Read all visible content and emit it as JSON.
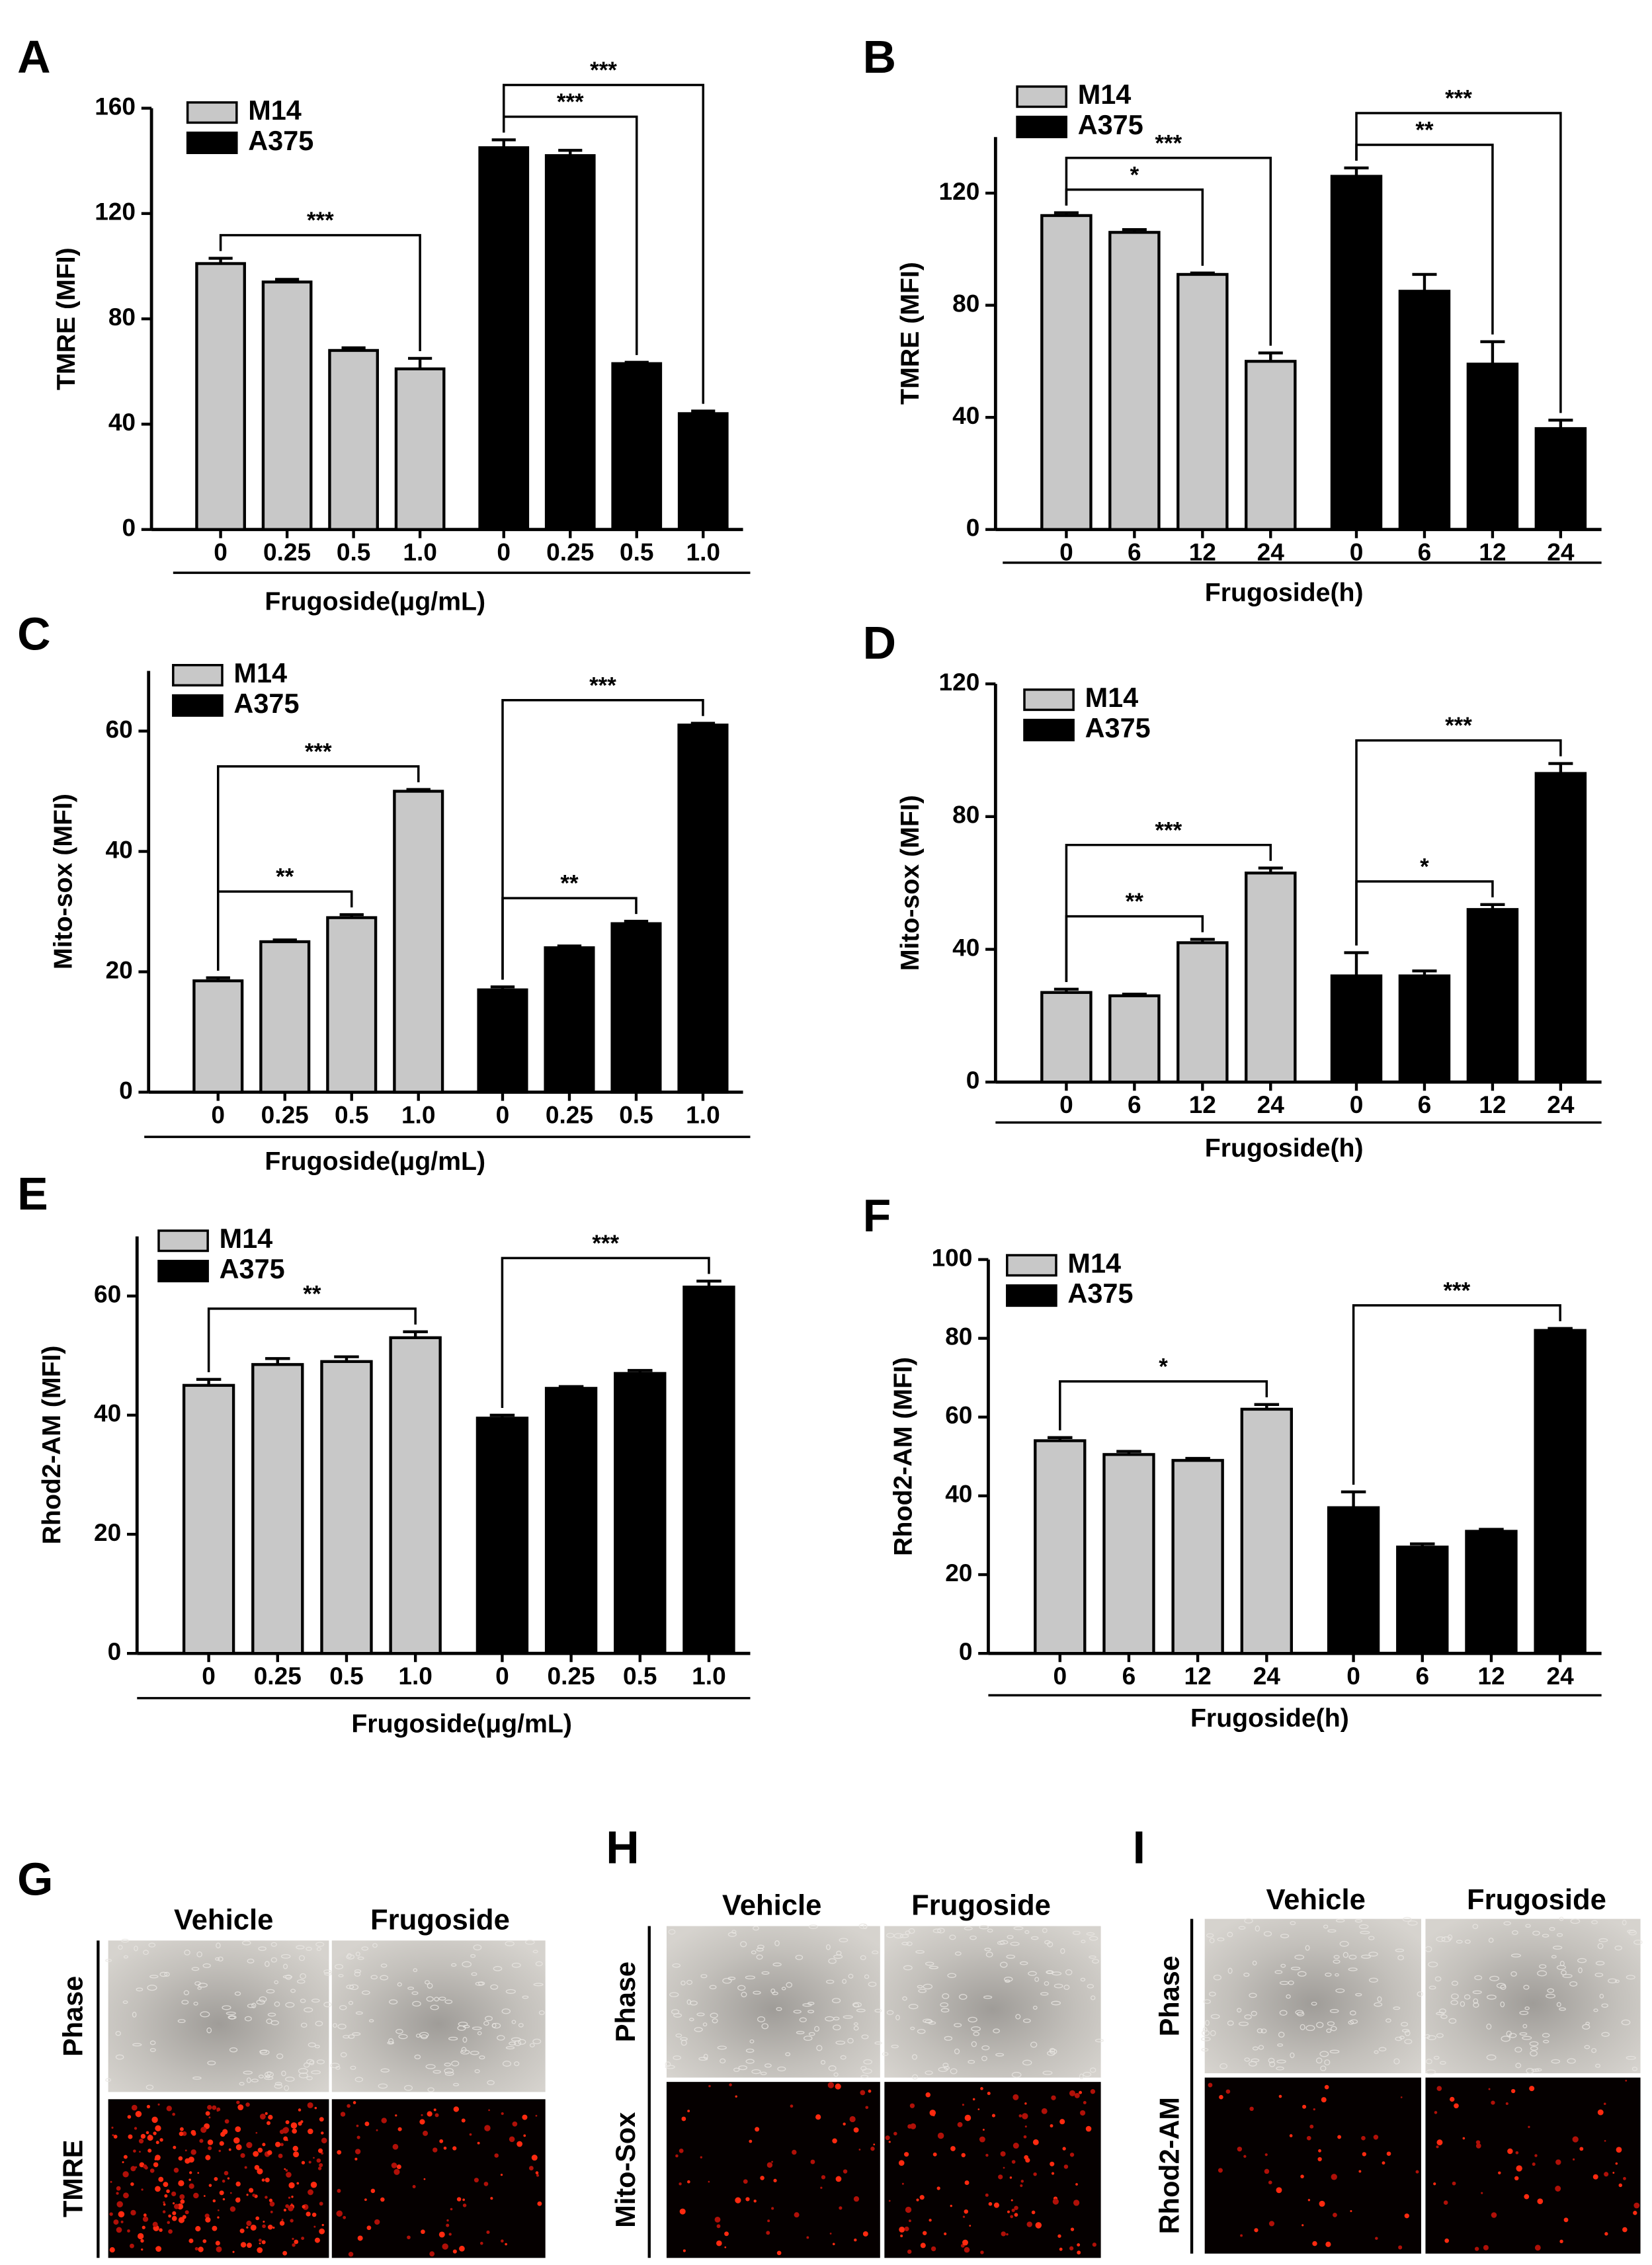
{
  "chart_data": [
    {
      "type": "bar",
      "label": "A",
      "y_label": "TMRE (MFI)",
      "x_label": "Frugoside(μg/mL)",
      "categories": [
        "0",
        "0.25",
        "0.5",
        "1.0",
        "0",
        "0.25",
        "0.5",
        "1.0"
      ],
      "series": [
        {
          "name": "M14",
          "color": "#c8c8c8",
          "values": [
            101,
            94,
            68,
            61,
            null,
            null,
            null,
            null
          ],
          "errors": [
            2,
            1,
            1,
            4,
            null,
            null,
            null,
            null
          ]
        },
        {
          "name": "A375",
          "color": "#000000",
          "values": [
            null,
            null,
            null,
            null,
            145,
            142,
            63,
            44
          ],
          "errors": [
            null,
            null,
            null,
            null,
            3,
            2,
            0.5,
            1
          ]
        }
      ],
      "annotations": [
        {
          "from": 0,
          "to": 3,
          "label": "***"
        },
        {
          "from": 4,
          "to": 6,
          "label": "***"
        },
        {
          "from": 4,
          "to": 7,
          "label": "***"
        }
      ],
      "ylim": [
        0,
        160
      ],
      "yticks": [
        0,
        40,
        80,
        120,
        160
      ]
    },
    {
      "type": "bar",
      "label": "B",
      "y_label": "TMRE (MFI)",
      "x_label": "Frugoside(h)",
      "categories": [
        "0",
        "6",
        "12",
        "24",
        "0",
        "6",
        "12",
        "24"
      ],
      "series": [
        {
          "name": "M14",
          "color": "#c8c8c8",
          "values": [
            112,
            106,
            91,
            60,
            null,
            null,
            null,
            null
          ],
          "errors": [
            1,
            1,
            0.5,
            3,
            null,
            null,
            null,
            null
          ]
        },
        {
          "name": "A375",
          "color": "#000000",
          "values": [
            null,
            null,
            null,
            null,
            126,
            85,
            59,
            36
          ],
          "errors": [
            null,
            null,
            null,
            null,
            3,
            6,
            8,
            3
          ]
        }
      ],
      "annotations": [
        {
          "from": 0,
          "to": 2,
          "label": "*"
        },
        {
          "from": 0,
          "to": 3,
          "label": "***"
        },
        {
          "from": 4,
          "to": 6,
          "label": "**"
        },
        {
          "from": 4,
          "to": 7,
          "label": "***"
        }
      ],
      "ylim": [
        0,
        140
      ],
      "yticks": [
        0,
        40,
        80,
        120
      ]
    },
    {
      "type": "bar",
      "label": "C",
      "y_label": "Mito-sox (MFI)",
      "x_label": "Frugoside(μg/mL)",
      "categories": [
        "0",
        "0.25",
        "0.5",
        "1.0",
        "0",
        "0.25",
        "0.5",
        "1.0"
      ],
      "series": [
        {
          "name": "M14",
          "color": "#c8c8c8",
          "values": [
            18.5,
            25,
            29,
            50,
            null,
            null,
            null,
            null
          ],
          "errors": [
            0.5,
            0.3,
            0.5,
            0.3,
            null,
            null,
            null,
            null
          ]
        },
        {
          "name": "A375",
          "color": "#000000",
          "values": [
            null,
            null,
            null,
            null,
            17,
            24,
            28,
            61
          ],
          "errors": [
            null,
            null,
            null,
            null,
            0.5,
            0.3,
            0.4,
            0.3
          ]
        }
      ],
      "annotations": [
        {
          "from": 0,
          "to": 2,
          "label": "**"
        },
        {
          "from": 0,
          "to": 3,
          "label": "***"
        },
        {
          "from": 4,
          "to": 6,
          "label": "**"
        },
        {
          "from": 4,
          "to": 7,
          "label": "***"
        }
      ],
      "ylim": [
        0,
        70
      ],
      "yticks": [
        0,
        20,
        40,
        60
      ]
    },
    {
      "type": "bar",
      "label": "D",
      "y_label": "Mito-sox (MFI)",
      "x_label": "Frugoside(h)",
      "categories": [
        "0",
        "6",
        "12",
        "24",
        "0",
        "6",
        "12",
        "24"
      ],
      "series": [
        {
          "name": "M14",
          "color": "#c8c8c8",
          "values": [
            27,
            26,
            42,
            63,
            null,
            null,
            null,
            null
          ],
          "errors": [
            1,
            0.5,
            1,
            1.5,
            null,
            null,
            null,
            null
          ]
        },
        {
          "name": "A375",
          "color": "#000000",
          "values": [
            null,
            null,
            null,
            null,
            32,
            32,
            52,
            93
          ],
          "errors": [
            null,
            null,
            null,
            null,
            7,
            1.5,
            1.5,
            3
          ]
        }
      ],
      "annotations": [
        {
          "from": 0,
          "to": 2,
          "label": "**"
        },
        {
          "from": 0,
          "to": 3,
          "label": "***"
        },
        {
          "from": 4,
          "to": 6,
          "label": "*"
        },
        {
          "from": 4,
          "to": 7,
          "label": "***"
        }
      ],
      "ylim": [
        0,
        120
      ],
      "yticks": [
        0,
        40,
        80,
        120
      ]
    },
    {
      "type": "bar",
      "label": "E",
      "y_label": "Rhod2-AM (MFI)",
      "x_label": "Frugoside(μg/mL)",
      "categories": [
        "0",
        "0.25",
        "0.5",
        "1.0",
        "0",
        "0.25",
        "0.5",
        "1.0"
      ],
      "series": [
        {
          "name": "M14",
          "color": "#c8c8c8",
          "values": [
            45,
            48.5,
            49,
            53,
            null,
            null,
            null,
            null
          ],
          "errors": [
            1,
            1,
            0.8,
            1,
            null,
            null,
            null,
            null
          ]
        },
        {
          "name": "A375",
          "color": "#000000",
          "values": [
            null,
            null,
            null,
            null,
            39.5,
            44.5,
            47,
            61.5
          ],
          "errors": [
            null,
            null,
            null,
            null,
            0.5,
            0.3,
            0.5,
            1
          ]
        }
      ],
      "annotations": [
        {
          "from": 0,
          "to": 3,
          "label": "**"
        },
        {
          "from": 4,
          "to": 7,
          "label": "***"
        }
      ],
      "ylim": [
        0,
        70
      ],
      "yticks": [
        0,
        20,
        40,
        60
      ]
    },
    {
      "type": "bar",
      "label": "F",
      "y_label": "Rhod2-AM (MFI)",
      "x_label": "Frugoside(h)",
      "categories": [
        "0",
        "6",
        "12",
        "24",
        "0",
        "6",
        "12",
        "24"
      ],
      "series": [
        {
          "name": "M14",
          "color": "#c8c8c8",
          "values": [
            54,
            50.5,
            49,
            62,
            null,
            null,
            null,
            null
          ],
          "errors": [
            0.8,
            0.8,
            0.5,
            1.2,
            null,
            null,
            null,
            null
          ]
        },
        {
          "name": "A375",
          "color": "#000000",
          "values": [
            null,
            null,
            null,
            null,
            37,
            27,
            31,
            82
          ],
          "errors": [
            null,
            null,
            null,
            null,
            4,
            0.8,
            0.5,
            0.5
          ]
        }
      ],
      "annotations": [
        {
          "from": 0,
          "to": 3,
          "label": "*"
        },
        {
          "from": 4,
          "to": 7,
          "label": "***"
        }
      ],
      "ylim": [
        0,
        100
      ],
      "yticks": [
        0,
        20,
        40,
        60,
        80,
        100
      ]
    }
  ],
  "image_panels": [
    {
      "label": "G",
      "columns": [
        "Vehicle",
        "Frugoside"
      ],
      "rows": [
        "Phase",
        "TMRE"
      ]
    },
    {
      "label": "H",
      "columns": [
        "Vehicle",
        "Frugoside"
      ],
      "rows": [
        "Phase",
        "Mito-Sox"
      ]
    },
    {
      "label": "I",
      "columns": [
        "Vehicle",
        "Frugoside"
      ],
      "rows": [
        "Phase",
        "Rhod2-AM"
      ]
    }
  ]
}
